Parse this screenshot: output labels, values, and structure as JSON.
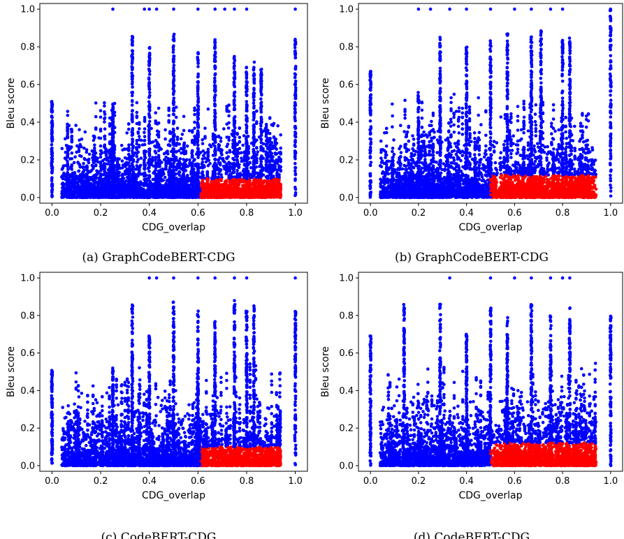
{
  "colors": {
    "low": "#ff0000",
    "high": "#0000ff"
  },
  "chart_data": [
    {
      "type": "scatter",
      "caption": "(a) GraphCodeBERT-CDG",
      "xlabel": "CDG_overlap",
      "ylabel": "Bleu score",
      "xlim": [
        -0.05,
        1.05
      ],
      "ylim": [
        -0.03,
        1.03
      ],
      "xticks": [
        "0.0",
        "0.2",
        "0.4",
        "0.6",
        "0.8",
        "1.0"
      ],
      "yticks": [
        "0.0",
        "0.2",
        "0.4",
        "0.6",
        "0.8",
        "1.0"
      ],
      "grid": false,
      "red_region": {
        "x_min": 0.61,
        "y_max": 0.1
      },
      "vertical_streaks": [
        {
          "x": 0.0,
          "y_max": 0.51
        },
        {
          "x": 0.25,
          "y_max": 0.48
        },
        {
          "x": 0.33,
          "y_max": 0.86
        },
        {
          "x": 0.4,
          "y_max": 0.8
        },
        {
          "x": 0.5,
          "y_max": 0.88
        },
        {
          "x": 0.6,
          "y_max": 0.78
        },
        {
          "x": 0.67,
          "y_max": 0.85
        },
        {
          "x": 0.75,
          "y_max": 0.75
        },
        {
          "x": 0.8,
          "y_max": 0.7
        },
        {
          "x": 0.83,
          "y_max": 0.72
        },
        {
          "x": 0.86,
          "y_max": 0.7
        },
        {
          "x": 1.0,
          "y_max": 0.84
        }
      ],
      "top_points_x": [
        0.25,
        0.38,
        0.4,
        0.43,
        0.5,
        0.6,
        0.67,
        0.71,
        0.75,
        0.8,
        1.0
      ]
    },
    {
      "type": "scatter",
      "caption": "(b) GraphCodeBERT-CDG",
      "xlabel": "CDG_overlap",
      "ylabel": "Bleu score",
      "xlim": [
        -0.05,
        1.05
      ],
      "ylim": [
        -0.03,
        1.03
      ],
      "xticks": [
        "0.0",
        "0.2",
        "0.4",
        "0.6",
        "0.8",
        "1.0"
      ],
      "yticks": [
        "0.0",
        "0.2",
        "0.4",
        "0.6",
        "0.8",
        "1.0"
      ],
      "grid": false,
      "red_region": {
        "x_min": 0.5,
        "y_max": 0.12
      },
      "vertical_streaks": [
        {
          "x": 0.0,
          "y_max": 0.68
        },
        {
          "x": 0.2,
          "y_max": 0.56
        },
        {
          "x": 0.29,
          "y_max": 0.86
        },
        {
          "x": 0.4,
          "y_max": 0.8
        },
        {
          "x": 0.5,
          "y_max": 0.84
        },
        {
          "x": 0.57,
          "y_max": 0.9
        },
        {
          "x": 0.67,
          "y_max": 0.86
        },
        {
          "x": 0.71,
          "y_max": 0.89
        },
        {
          "x": 0.8,
          "y_max": 0.84
        },
        {
          "x": 0.83,
          "y_max": 0.86
        },
        {
          "x": 1.0,
          "y_max": 1.0
        }
      ],
      "top_points_x": [
        0.2,
        0.25,
        0.33,
        0.4,
        0.5,
        0.6,
        0.67,
        0.75,
        0.8,
        1.0
      ]
    },
    {
      "type": "scatter",
      "caption": "(c) CodeBERT-CDG",
      "xlabel": "CDG_overlap",
      "ylabel": "Bleu score",
      "xlim": [
        -0.05,
        1.05
      ],
      "ylim": [
        -0.03,
        1.03
      ],
      "xticks": [
        "0.0",
        "0.2",
        "0.4",
        "0.6",
        "0.8",
        "1.0"
      ],
      "yticks": [
        "0.0",
        "0.2",
        "0.4",
        "0.6",
        "0.8",
        "1.0"
      ],
      "grid": false,
      "red_region": {
        "x_min": 0.61,
        "y_max": 0.1
      },
      "vertical_streaks": [
        {
          "x": 0.0,
          "y_max": 0.51
        },
        {
          "x": 0.25,
          "y_max": 0.52
        },
        {
          "x": 0.33,
          "y_max": 0.86
        },
        {
          "x": 0.4,
          "y_max": 0.7
        },
        {
          "x": 0.5,
          "y_max": 0.88
        },
        {
          "x": 0.6,
          "y_max": 0.83
        },
        {
          "x": 0.67,
          "y_max": 0.78
        },
        {
          "x": 0.75,
          "y_max": 0.89
        },
        {
          "x": 0.8,
          "y_max": 0.83
        },
        {
          "x": 0.83,
          "y_max": 0.86
        },
        {
          "x": 1.0,
          "y_max": 0.84
        }
      ],
      "top_points_x": [
        0.4,
        0.43,
        0.5,
        0.6,
        0.67,
        0.75,
        0.8,
        1.0
      ]
    },
    {
      "type": "scatter",
      "caption": "(d) CodeBERT-CDG",
      "xlabel": "CDG_overlap",
      "ylabel": "Bleu score",
      "xlim": [
        -0.05,
        1.05
      ],
      "ylim": [
        -0.03,
        1.03
      ],
      "xticks": [
        "0.0",
        "0.2",
        "0.4",
        "0.6",
        "0.8",
        "1.0"
      ],
      "yticks": [
        "0.0",
        "0.2",
        "0.4",
        "0.6",
        "0.8",
        "1.0"
      ],
      "grid": false,
      "red_region": {
        "x_min": 0.5,
        "y_max": 0.12
      },
      "vertical_streaks": [
        {
          "x": 0.0,
          "y_max": 0.71
        },
        {
          "x": 0.14,
          "y_max": 0.86
        },
        {
          "x": 0.29,
          "y_max": 0.86
        },
        {
          "x": 0.4,
          "y_max": 0.7
        },
        {
          "x": 0.5,
          "y_max": 0.84
        },
        {
          "x": 0.57,
          "y_max": 0.8
        },
        {
          "x": 0.67,
          "y_max": 0.86
        },
        {
          "x": 0.75,
          "y_max": 0.8
        },
        {
          "x": 0.83,
          "y_max": 0.86
        },
        {
          "x": 1.0,
          "y_max": 0.81
        }
      ],
      "top_points_x": [
        0.33,
        0.5,
        0.6,
        0.67,
        0.75,
        0.8,
        0.83
      ]
    }
  ]
}
